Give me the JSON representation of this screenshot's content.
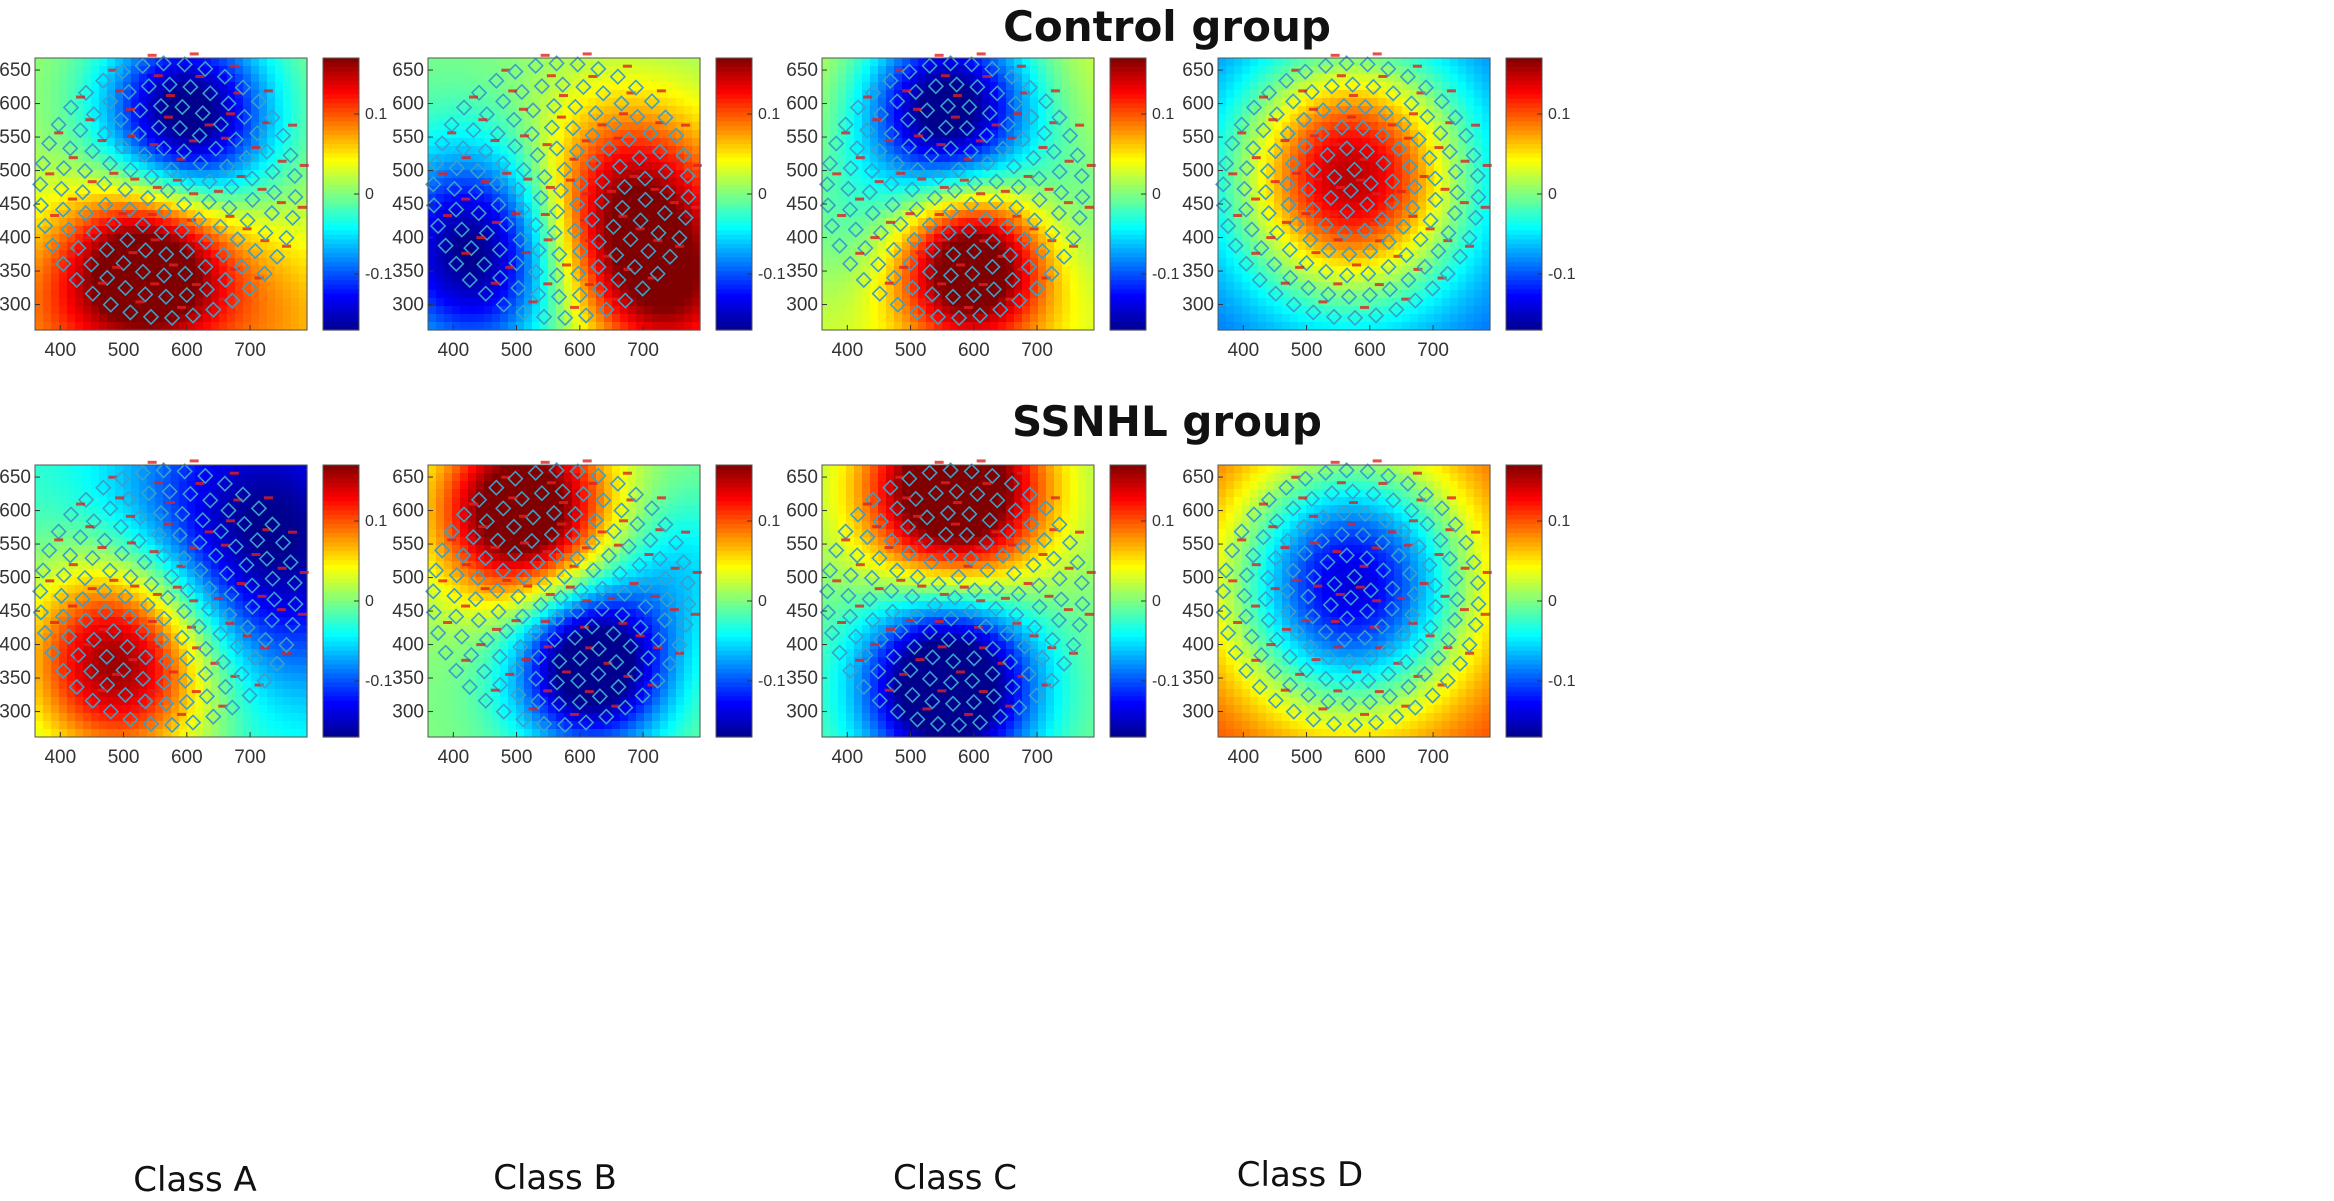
{
  "figure": {
    "groups": [
      "Control group",
      "SSNHL group"
    ],
    "classes": [
      "Class A",
      "Class B",
      "Class C",
      "Class D"
    ]
  },
  "colors": {
    "colormap": [
      "#00008f",
      "#0000ff",
      "#0080ff",
      "#00ffff",
      "#80ff80",
      "#ffff00",
      "#ff8000",
      "#ff0000",
      "#800000"
    ],
    "electrode_marker": "#3aa0c8",
    "electrode_label": "#e02020"
  },
  "chart_data": [
    {
      "type": "heatmap",
      "group": "Control group",
      "class": "Class A",
      "x_ticks": [
        400,
        500,
        600,
        700
      ],
      "y_ticks": [
        300,
        350,
        400,
        450,
        500,
        550,
        600,
        650
      ],
      "xlim": [
        360,
        790
      ],
      "ylim": [
        262,
        668
      ],
      "colorbar_ticks": [
        0.1,
        0,
        -0.1
      ],
      "colorbar_range": [
        -0.17,
        0.17
      ],
      "sources": [
        {
          "x": 600,
          "y": 580,
          "w": -0.2,
          "s": 95
        },
        {
          "x": 540,
          "y": 355,
          "w": 0.2,
          "s": 90
        },
        {
          "x": 380,
          "y": 270,
          "w": 0.06,
          "s": 110
        },
        {
          "x": 740,
          "y": 270,
          "w": 0.06,
          "s": 110
        }
      ],
      "base": 0.01
    },
    {
      "type": "heatmap",
      "group": "Control group",
      "class": "Class B",
      "x_ticks": [
        400,
        500,
        600,
        700
      ],
      "y_ticks": [
        300,
        350,
        400,
        450,
        500,
        550,
        600,
        650
      ],
      "xlim": [
        360,
        790
      ],
      "ylim": [
        262,
        668
      ],
      "colorbar_ticks": [
        0.1,
        0,
        -0.1
      ],
      "colorbar_range": [
        -0.17,
        0.17
      ],
      "sources": [
        {
          "x": 450,
          "y": 380,
          "w": -0.2,
          "s": 110
        },
        {
          "x": 670,
          "y": 420,
          "w": 0.2,
          "s": 120
        },
        {
          "x": 760,
          "y": 300,
          "w": 0.08,
          "s": 80
        }
      ],
      "base": 0.0
    },
    {
      "type": "heatmap",
      "group": "Control group",
      "class": "Class C",
      "x_ticks": [
        400,
        500,
        600,
        700
      ],
      "y_ticks": [
        300,
        350,
        400,
        450,
        500,
        550,
        600,
        650
      ],
      "xlim": [
        360,
        790
      ],
      "ylim": [
        262,
        668
      ],
      "colorbar_ticks": [
        0.1,
        0,
        -0.1
      ],
      "colorbar_range": [
        -0.17,
        0.17
      ],
      "sources": [
        {
          "x": 560,
          "y": 590,
          "w": -0.22,
          "s": 95
        },
        {
          "x": 600,
          "y": 360,
          "w": 0.2,
          "s": 85
        },
        {
          "x": 410,
          "y": 420,
          "w": -0.04,
          "s": 90
        },
        {
          "x": 740,
          "y": 430,
          "w": -0.04,
          "s": 90
        }
      ],
      "base": 0.03
    },
    {
      "type": "heatmap",
      "group": "Control group",
      "class": "Class D",
      "x_ticks": [
        400,
        500,
        600,
        700
      ],
      "y_ticks": [
        300,
        350,
        400,
        450,
        500,
        550,
        600,
        650
      ],
      "xlim": [
        360,
        790
      ],
      "ylim": [
        262,
        668
      ],
      "colorbar_ticks": [
        0.1,
        0,
        -0.1
      ],
      "colorbar_range": [
        -0.17,
        0.17
      ],
      "sources": [
        {
          "x": 570,
          "y": 490,
          "w": 0.25,
          "s": 130
        }
      ],
      "base": -0.1
    },
    {
      "type": "heatmap",
      "group": "SSNHL group",
      "class": "Class A",
      "x_ticks": [
        400,
        500,
        600,
        700
      ],
      "y_ticks": [
        300,
        350,
        400,
        450,
        500,
        550,
        600,
        650
      ],
      "xlim": [
        360,
        790
      ],
      "ylim": [
        262,
        668
      ],
      "colorbar_ticks": [
        0.1,
        0,
        -0.1
      ],
      "colorbar_range": [
        -0.17,
        0.17
      ],
      "sources": [
        {
          "x": 500,
          "y": 380,
          "w": 0.21,
          "s": 110
        },
        {
          "x": 720,
          "y": 560,
          "w": -0.16,
          "s": 160
        }
      ],
      "base": -0.02
    },
    {
      "type": "heatmap",
      "group": "SSNHL group",
      "class": "Class B",
      "x_ticks": [
        400,
        500,
        600,
        700
      ],
      "y_ticks": [
        300,
        350,
        400,
        450,
        500,
        550,
        600,
        650
      ],
      "xlim": [
        360,
        790
      ],
      "ylim": [
        262,
        668
      ],
      "colorbar_ticks": [
        0.1,
        0,
        -0.1
      ],
      "colorbar_range": [
        -0.17,
        0.17
      ],
      "sources": [
        {
          "x": 510,
          "y": 600,
          "w": 0.22,
          "s": 95
        },
        {
          "x": 620,
          "y": 370,
          "w": -0.22,
          "s": 85
        },
        {
          "x": 760,
          "y": 520,
          "w": -0.05,
          "s": 80
        }
      ],
      "base": 0.0
    },
    {
      "type": "heatmap",
      "group": "SSNHL group",
      "class": "Class C",
      "x_ticks": [
        400,
        500,
        600,
        700
      ],
      "y_ticks": [
        300,
        350,
        400,
        450,
        500,
        550,
        600,
        650
      ],
      "xlim": [
        360,
        790
      ],
      "ylim": [
        262,
        668
      ],
      "colorbar_ticks": [
        0.1,
        0,
        -0.1
      ],
      "colorbar_range": [
        -0.17,
        0.17
      ],
      "sources": [
        {
          "x": 570,
          "y": 630,
          "w": 0.24,
          "s": 100
        },
        {
          "x": 560,
          "y": 340,
          "w": -0.24,
          "s": 95
        }
      ],
      "base": 0.0
    },
    {
      "type": "heatmap",
      "group": "SSNHL group",
      "class": "Class D",
      "x_ticks": [
        400,
        500,
        600,
        700
      ],
      "y_ticks": [
        300,
        350,
        400,
        450,
        500,
        550,
        600,
        650
      ],
      "xlim": [
        360,
        790
      ],
      "ylim": [
        262,
        668
      ],
      "colorbar_ticks": [
        0.1,
        0,
        -0.1
      ],
      "colorbar_range": [
        -0.17,
        0.17
      ],
      "sources": [
        {
          "x": 570,
          "y": 490,
          "w": -0.26,
          "s": 140
        }
      ],
      "base": 0.12
    }
  ]
}
